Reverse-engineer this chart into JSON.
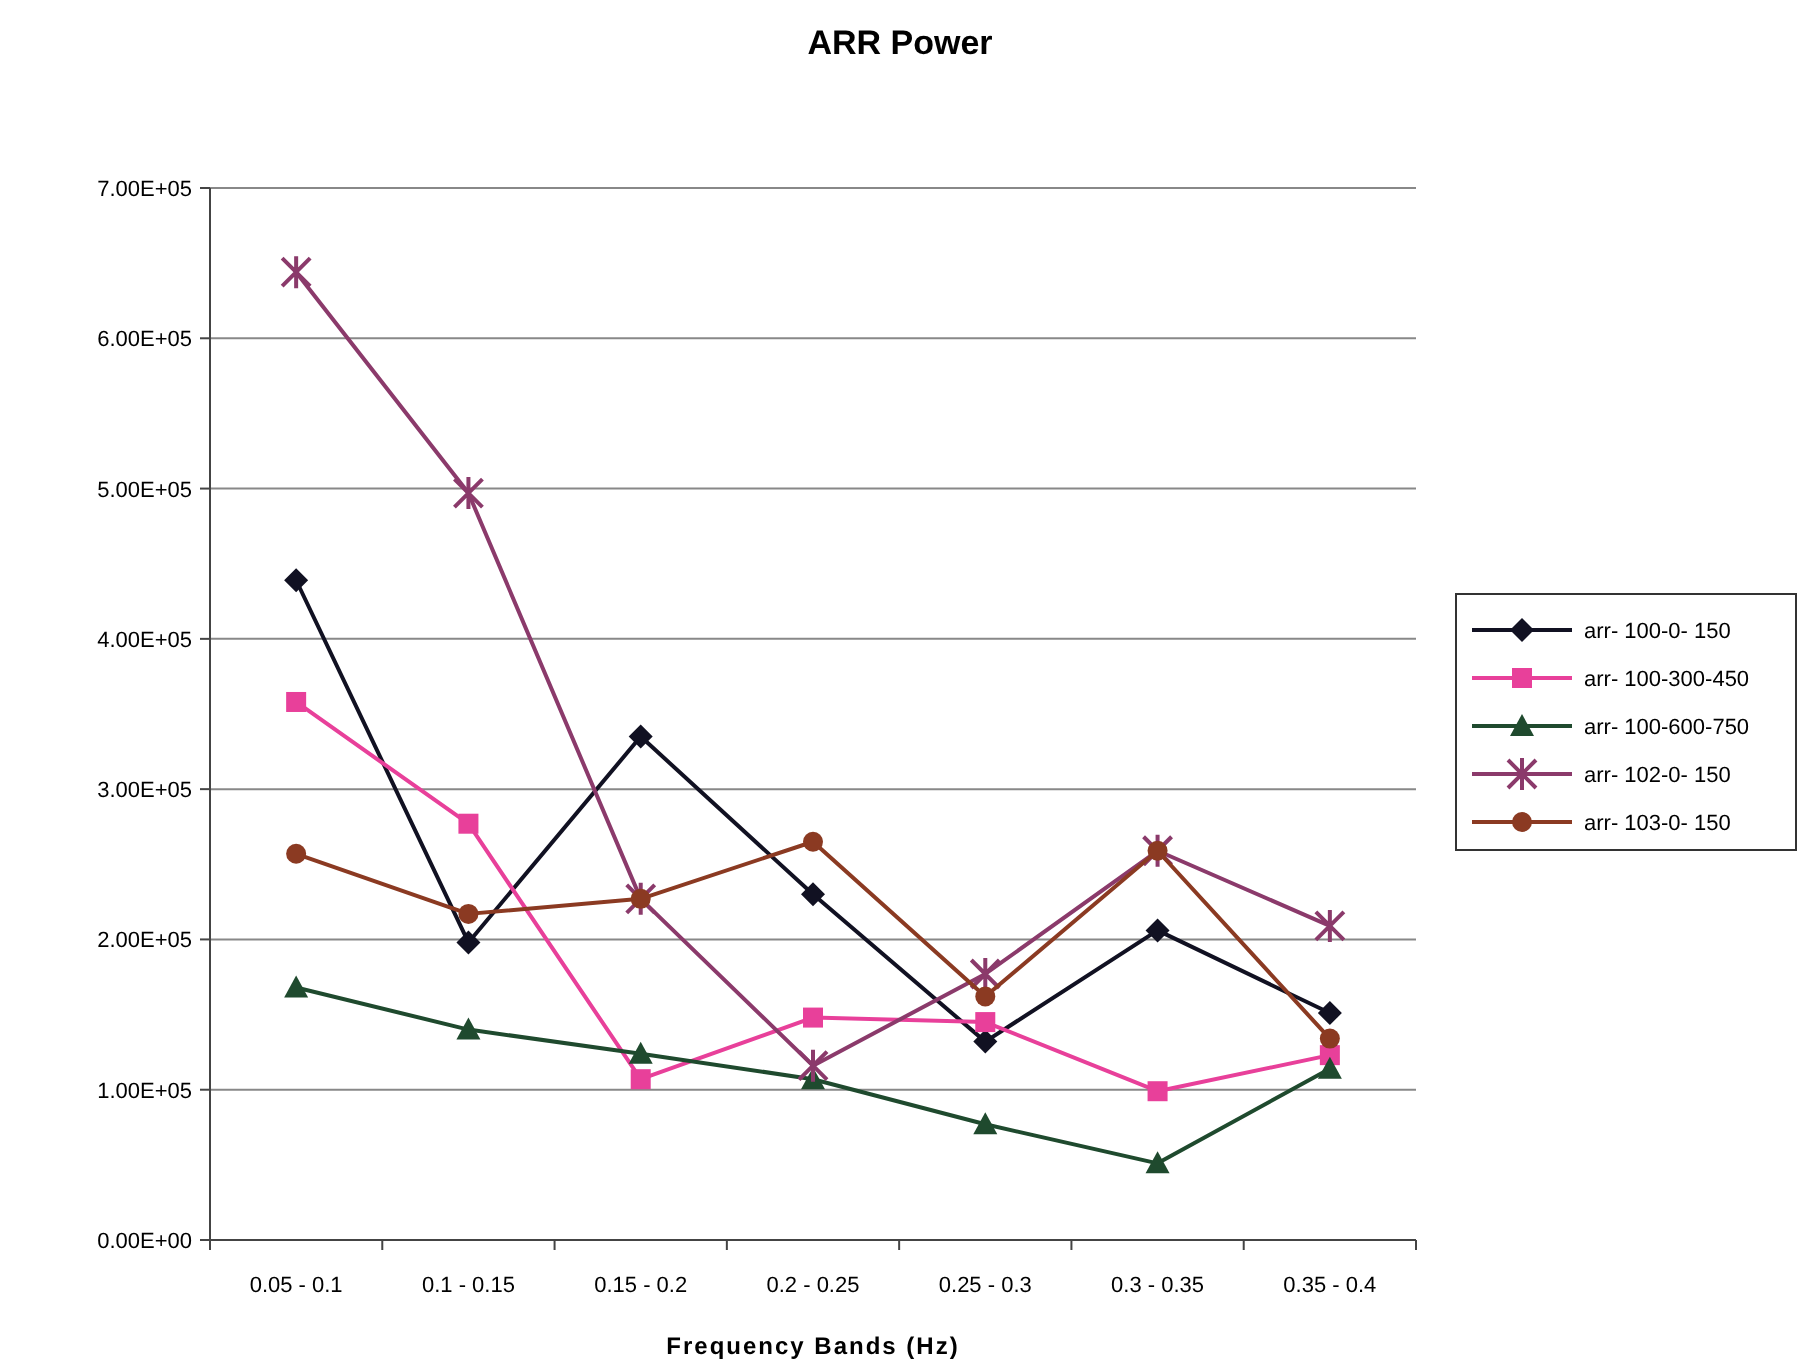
{
  "chart_data": {
    "type": "line",
    "title": "ARR Power",
    "xlabel": "Frequency Bands (Hz)",
    "categories": [
      "0.05 - 0.1",
      "0.1 - 0.15",
      "0.15 - 0.2",
      "0.2 - 0.25",
      "0.25 - 0.3",
      "0.3 - 0.35",
      "0.35 - 0.4"
    ],
    "ylim": [
      0,
      700000
    ],
    "yticks": [
      {
        "value": 0,
        "label": "0.00E+00"
      },
      {
        "value": 100000,
        "label": "1.00E+05"
      },
      {
        "value": 200000,
        "label": "2.00E+05"
      },
      {
        "value": 300000,
        "label": "3.00E+05"
      },
      {
        "value": 400000,
        "label": "4.00E+05"
      },
      {
        "value": 500000,
        "label": "5.00E+05"
      },
      {
        "value": 600000,
        "label": "6.00E+05"
      },
      {
        "value": 700000,
        "label": "7.00E+05"
      }
    ],
    "grid": "y",
    "legend": "right",
    "line_style": "solid",
    "series": [
      {
        "name": "arr- 100-0- 150",
        "color": "#111122",
        "marker": "diamond",
        "values": [
          439000,
          198000,
          335000,
          230000,
          132000,
          206000,
          151000
        ]
      },
      {
        "name": "arr- 100-300-450",
        "color": "#e8409a",
        "marker": "square",
        "values": [
          358000,
          277000,
          107000,
          148000,
          145000,
          99000,
          123000
        ]
      },
      {
        "name": "arr- 100-600-750",
        "color": "#1f4a2e",
        "marker": "triangle",
        "values": [
          168000,
          140000,
          124000,
          107000,
          77000,
          51000,
          114000
        ]
      },
      {
        "name": "arr- 102-0- 150",
        "color": "#8b3a6b",
        "marker": "cross",
        "values": [
          644000,
          497000,
          227000,
          116000,
          177000,
          259000,
          209000
        ]
      },
      {
        "name": "arr- 103-0- 150",
        "color": "#8b3a22",
        "marker": "circle",
        "values": [
          257000,
          217000,
          227000,
          265000,
          162000,
          259000,
          134000
        ]
      }
    ]
  }
}
